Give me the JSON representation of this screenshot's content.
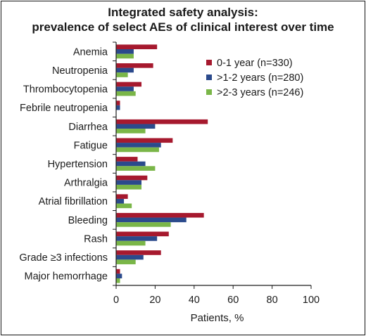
{
  "chart_data": {
    "type": "bar",
    "orientation": "horizontal",
    "title": "Integrated safety analysis:",
    "subtitle": "prevalence of select AEs of clinical interest over time",
    "xlabel": "Patients, %",
    "ylabel": "",
    "xlim": [
      0,
      100
    ],
    "xticks": [
      0,
      20,
      40,
      60,
      80,
      100
    ],
    "grid": false,
    "legend_position": "top-right",
    "categories": [
      "Anemia",
      "Neutropenia",
      "Thrombocytopenia",
      "Febrile neutropenia",
      "Diarrhea",
      "Fatigue",
      "Hypertension",
      "Arthralgia",
      "Atrial fibrillation",
      "Bleeding",
      "Rash",
      "Grade ≥3 infections",
      "Major hemorrhage"
    ],
    "series": [
      {
        "name": "0-1 year (n=330)",
        "color": "#a6192e",
        "values": [
          21,
          19,
          13,
          2,
          47,
          29,
          11,
          16,
          6,
          45,
          27,
          23,
          2
        ]
      },
      {
        "name": ">1-2 years (n=280)",
        "color": "#2b4a8c",
        "values": [
          9,
          9,
          9,
          2,
          20,
          23,
          15,
          13,
          4,
          36,
          21,
          14,
          3
        ]
      },
      {
        "name": ">2-3 years (n=246)",
        "color": "#7ab648",
        "values": [
          9,
          6,
          10,
          0,
          15,
          22,
          20,
          13,
          8,
          28,
          15,
          10,
          2
        ]
      }
    ]
  }
}
